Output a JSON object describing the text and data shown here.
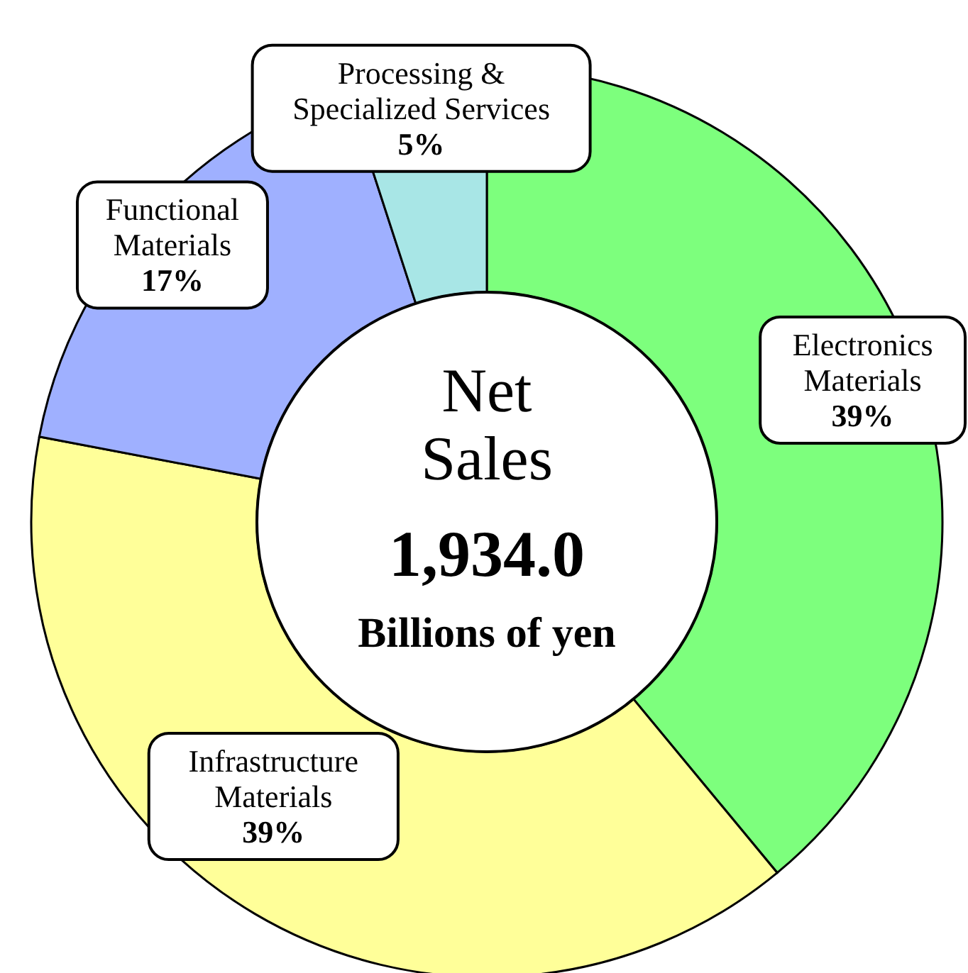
{
  "chart_data": {
    "type": "donut",
    "title": "Net Sales",
    "annotations": [
      "1,934.0",
      "Billions of yen"
    ],
    "categories": [
      "Electronics Materials",
      "Infrastructure Materials",
      "Functional Materials",
      "Processing & Specialized Services"
    ],
    "values": [
      39,
      39,
      17,
      5
    ],
    "value_labels": [
      "39%",
      "39%",
      "17%",
      "5%"
    ],
    "colors": [
      "#7dff7d",
      "#ffff99",
      "#9fb0ff",
      "#a8e6e6"
    ]
  }
}
